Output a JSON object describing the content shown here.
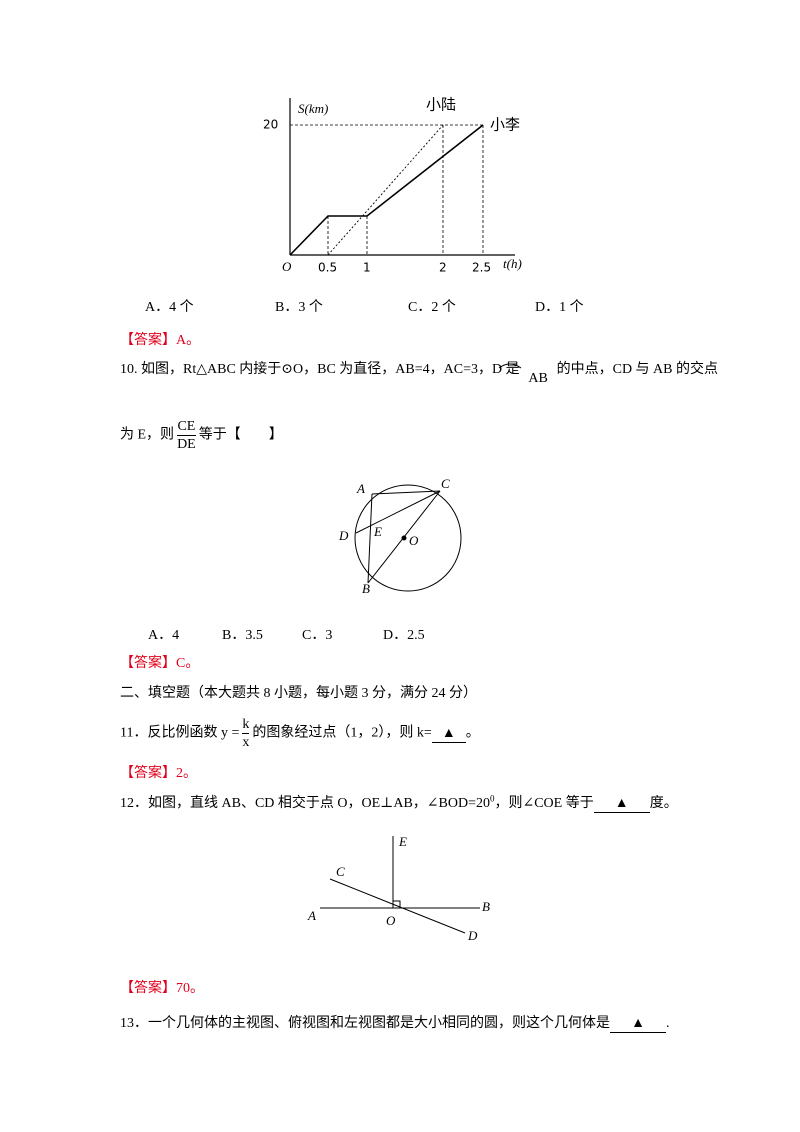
{
  "figure1": {
    "y_label": "S(km)",
    "y_value": "20",
    "origin": "O",
    "x_ticks": [
      "0.5",
      "1",
      "2",
      "2.5"
    ],
    "x_label": "t(h)",
    "series_labels": [
      "小陆",
      "小李"
    ]
  },
  "q9": {
    "options": [
      "A．4 个",
      "B．3 个",
      "C．2 个",
      "D．1 个"
    ],
    "answer": "【答案】A。"
  },
  "q10": {
    "text_before": "10. 如图，Rt△ABC 内接于⊙O，BC 为直径，AB=4，AC=3，D 是",
    "arc": "AB",
    "text_after": "的中点，CD 与 AB 的交点",
    "line2_before": "为 E，则",
    "fraction_num": "CE",
    "fraction_den": "DE",
    "line2_after": "等于【　　】",
    "figure_labels": [
      "A",
      "C",
      "D",
      "E",
      "O",
      "B"
    ],
    "options": [
      "A．4",
      "B．3.5",
      "C．3",
      "D．2.5"
    ],
    "answer": "【答案】C。"
  },
  "section": "二、填空题（本大题共 8 小题，每小题 3 分，满分 24 分）",
  "q11": {
    "text_before": "11．反比例函数 y =",
    "fraction_num": "k",
    "fraction_den": "x",
    "text_middle": "的图象经过点（1，2），则 k=",
    "blank": "▲",
    "text_after": "。",
    "answer": "【答案】2。"
  },
  "q12": {
    "text_before": "12．如图，直线 AB、CD 相交于点 O，OE⊥AB，∠BOD=20",
    "superscript": "0",
    "text_middle": "，则∠COE 等于",
    "blank": "▲",
    "text_after": "度。",
    "figure_labels": [
      "E",
      "C",
      "A",
      "O",
      "B",
      "D"
    ],
    "answer": "【答案】70。"
  },
  "q13": {
    "text_before": "13．一个几何体的主视图、俯视图和左视图都是大小相同的圆，则这个几何体是",
    "blank": "▲",
    "text_after": "."
  }
}
